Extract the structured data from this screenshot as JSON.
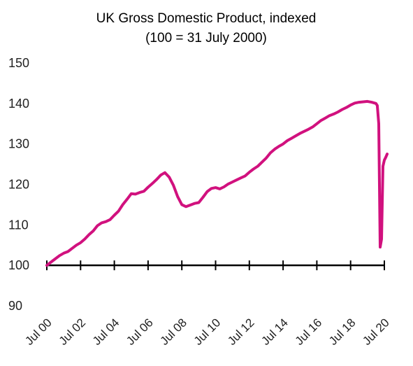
{
  "chart_data": {
    "type": "line",
    "title": "UK Gross Domestic Product, indexed",
    "subtitle": "(100 = 31 July 2000)",
    "xlabel": "",
    "ylabel": "",
    "ylim": [
      90,
      150
    ],
    "yticks": [
      "90",
      "100",
      "110",
      "120",
      "130",
      "140",
      "150"
    ],
    "xticks": [
      "Jul 00",
      "Jul 02",
      "Jul 04",
      "Jul 06",
      "Jul 08",
      "Jul 10",
      "Jul 12",
      "Jul 14",
      "Jul 16",
      "Jul 18",
      "Jul 20"
    ],
    "grid": false,
    "colors": {
      "line": "#d1117e",
      "axis": "#000000"
    },
    "series": [
      {
        "x": [
          "2000-07",
          "2000-10",
          "2001-01",
          "2001-04",
          "2001-07",
          "2001-10",
          "2002-01",
          "2002-04",
          "2002-07",
          "2002-10",
          "2003-01",
          "2003-04",
          "2003-07",
          "2003-10",
          "2004-01",
          "2004-04",
          "2004-07",
          "2004-10",
          "2005-01",
          "2005-04",
          "2005-07",
          "2005-10",
          "2006-01",
          "2006-04",
          "2006-07",
          "2006-10",
          "2007-01",
          "2007-04",
          "2007-07",
          "2007-10",
          "2008-01",
          "2008-04",
          "2008-07",
          "2008-10",
          "2009-01",
          "2009-04",
          "2009-07",
          "2009-10",
          "2010-01",
          "2010-04",
          "2010-07",
          "2010-10",
          "2011-01",
          "2011-04",
          "2011-07",
          "2011-10",
          "2012-01",
          "2012-04",
          "2012-07",
          "2012-10",
          "2013-01",
          "2013-04",
          "2013-07",
          "2013-10",
          "2014-01",
          "2014-04",
          "2014-07",
          "2014-10",
          "2015-01",
          "2015-04",
          "2015-07",
          "2015-10",
          "2016-01",
          "2016-04",
          "2016-07",
          "2016-10",
          "2017-01",
          "2017-04",
          "2017-07",
          "2017-10",
          "2018-01",
          "2018-04",
          "2018-07",
          "2018-10",
          "2019-01",
          "2019-04",
          "2019-07",
          "2019-10",
          "2020-01",
          "2020-02",
          "2020-03",
          "2020-04",
          "2020-05",
          "2020-06",
          "2020-07",
          "2020-08",
          "2020-09"
        ],
        "values": [
          100,
          100.8,
          101.6,
          102.4,
          103.0,
          103.4,
          104.2,
          105.0,
          105.6,
          106.5,
          107.6,
          108.5,
          109.8,
          110.5,
          110.8,
          111.3,
          112.4,
          113.4,
          115.0,
          116.3,
          117.7,
          117.6,
          118.0,
          118.3,
          119.3,
          120.2,
          121.2,
          122.3,
          122.9,
          121.8,
          119.8,
          117.0,
          115.0,
          114.5,
          114.9,
          115.3,
          115.5,
          116.8,
          118.2,
          119.0,
          119.2,
          118.9,
          119.4,
          120.1,
          120.6,
          121.1,
          121.6,
          122.1,
          123.0,
          123.8,
          124.5,
          125.5,
          126.5,
          127.8,
          128.7,
          129.4,
          130.0,
          130.8,
          131.4,
          132.0,
          132.6,
          133.1,
          133.6,
          134.2,
          135.0,
          135.8,
          136.4,
          137.0,
          137.4,
          137.9,
          138.5,
          139.0,
          139.6,
          140.1,
          140.3,
          140.4,
          140.5,
          140.3,
          140.0,
          139.5,
          135.0,
          104.5,
          106.5,
          124.5,
          126.0,
          126.7,
          127.5
        ]
      }
    ]
  }
}
